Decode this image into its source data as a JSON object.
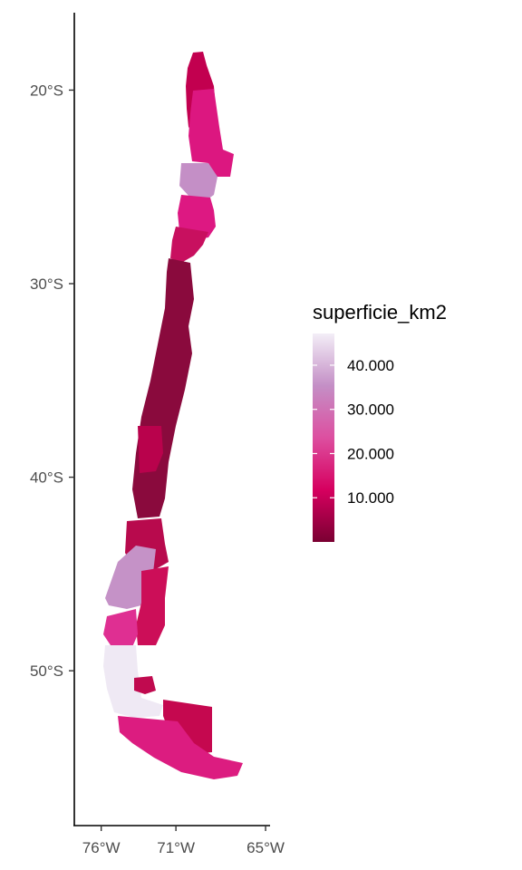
{
  "chart_data": {
    "type": "choropleth",
    "fill_variable": "superficie_km2",
    "legend": {
      "title": "superficie_km2",
      "placement": "right",
      "labels": [
        "40.000",
        "30.000",
        "20.000",
        "10.000"
      ],
      "breaks": [
        40000,
        30000,
        20000,
        10000
      ],
      "range": [
        0,
        50000
      ],
      "colors": {
        "low": "#7a0032",
        "mid_low": "#d6005f",
        "mid": "#dd4fa0",
        "mid_high": "#c48fc6",
        "high": "#f3eef7"
      }
    },
    "y_axis": {
      "labels": [
        "20°S",
        "30°S",
        "40°S",
        "50°S"
      ],
      "values": [
        -20,
        -30,
        -40,
        -50
      ],
      "range": [
        -58,
        -16
      ]
    },
    "x_axis": {
      "labels": [
        "76°W",
        "71°W",
        "65°W"
      ],
      "values": [
        -76,
        -71,
        -65
      ],
      "range": [
        -77.8,
        -64.7
      ]
    },
    "regions": [
      {
        "lat_range": [
          -17.5,
          -21
        ],
        "shade": "dark"
      },
      {
        "lat_range": [
          -21,
          -23
        ],
        "shade": "medium"
      },
      {
        "lat_range": [
          -23,
          -24.5
        ],
        "shade": "light-medium"
      },
      {
        "lat_range": [
          -24.5,
          -27
        ],
        "shade": "medium"
      },
      {
        "lat_range": [
          -27,
          -43
        ],
        "shade": "darkest"
      },
      {
        "lat_range": [
          -43,
          -46
        ],
        "shade": "dark"
      },
      {
        "lat_range": [
          -46,
          -48
        ],
        "shade": "light-medium"
      },
      {
        "lat_range": [
          -48,
          -49.5
        ],
        "shade": "medium"
      },
      {
        "lat_range": [
          -49.5,
          -53
        ],
        "shade": "lightest"
      },
      {
        "lat_range": [
          -52.5,
          -55.5
        ],
        "shade": "medium"
      }
    ]
  }
}
